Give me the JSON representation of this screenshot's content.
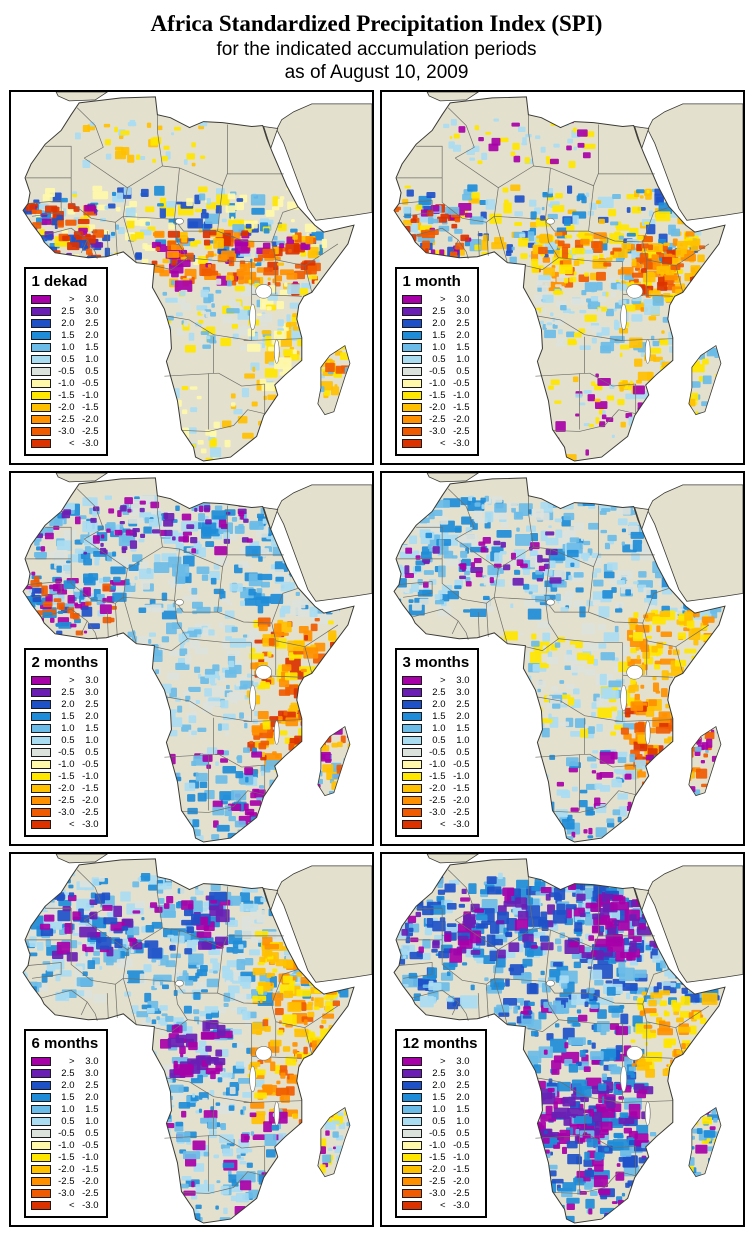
{
  "header": {
    "title": "Africa Standardized Precipitation Index (SPI)",
    "subtitle": "for the indicated accumulation periods",
    "date_line": "as of August 10, 2009"
  },
  "panels": [
    {
      "label": "1 dekad"
    },
    {
      "label": "1 month"
    },
    {
      "label": "2 months"
    },
    {
      "label": "3 months"
    },
    {
      "label": "6 months"
    },
    {
      "label": "12 months"
    }
  ],
  "legend": {
    "entries": [
      {
        "lo": ">",
        "hi": "3.0",
        "color": "#A800A8"
      },
      {
        "lo": "2.5",
        "hi": "3.0",
        "color": "#6A1EB4"
      },
      {
        "lo": "2.0",
        "hi": "2.5",
        "color": "#1E50C8"
      },
      {
        "lo": "1.5",
        "hi": "2.0",
        "color": "#1E8CD8"
      },
      {
        "lo": "1.0",
        "hi": "1.5",
        "color": "#6BBCE8"
      },
      {
        "lo": "0.5",
        "hi": "1.0",
        "color": "#AADCF2"
      },
      {
        "lo": "-0.5",
        "hi": "0.5",
        "color": "#DCE2DC"
      },
      {
        "lo": "-1.0",
        "hi": "-0.5",
        "color": "#FFF8AA"
      },
      {
        "lo": "-1.5",
        "hi": "-1.0",
        "color": "#FFE600"
      },
      {
        "lo": "-2.0",
        "hi": "-1.5",
        "color": "#FFC000"
      },
      {
        "lo": "-2.5",
        "hi": "-2.0",
        "color": "#FF9000"
      },
      {
        "lo": "-3.0",
        "hi": "-2.5",
        "color": "#F05A00"
      },
      {
        "lo": "<",
        "hi": "-3.0",
        "color": "#DC3200"
      }
    ]
  },
  "map": {
    "land_color": "#E4E0CE",
    "ocean_color": "#FFFFFF",
    "country_border_color": "#6E6E66",
    "coast_color": "#3A3A35"
  }
}
